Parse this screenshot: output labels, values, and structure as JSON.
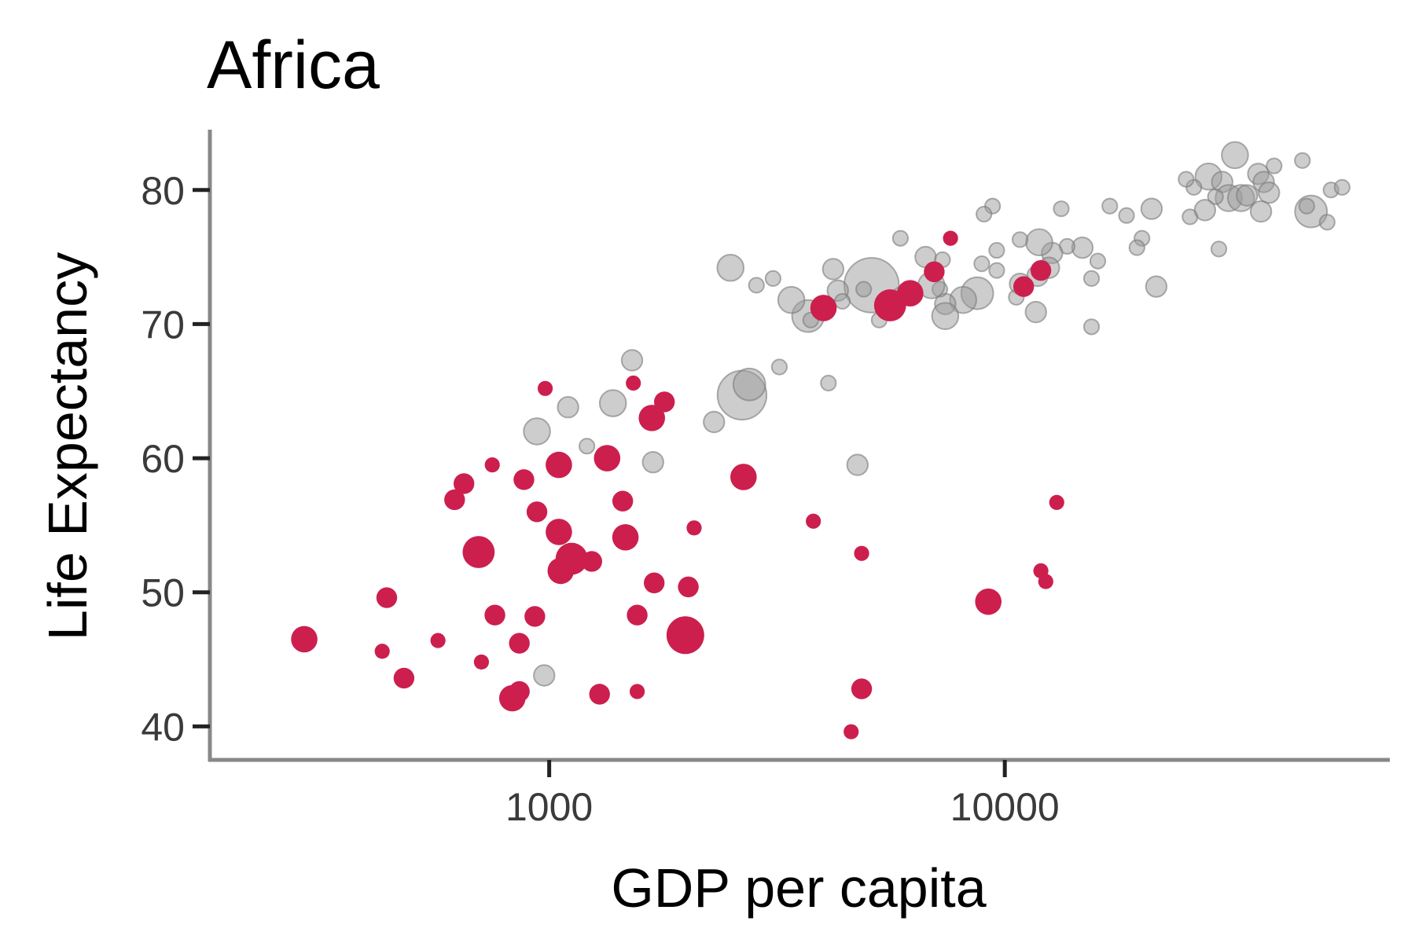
{
  "chart_data": {
    "type": "scatter",
    "title": "Africa",
    "xlabel": "GDP per capita",
    "ylabel": "Life Expectancy",
    "x_scale": "log10",
    "xlim": [
      180,
      70000
    ],
    "ylim": [
      37.5,
      84.5
    ],
    "x_ticks": [
      1000,
      10000
    ],
    "x_tick_labels": [
      "1000",
      "10000"
    ],
    "y_ticks": [
      40,
      50,
      60,
      70,
      80
    ],
    "y_tick_labels": [
      "40",
      "50",
      "60",
      "70",
      "80"
    ],
    "grid": false,
    "legend": "none",
    "colors": {
      "highlight": "#cc1f4e",
      "other": "#9b9b9b"
    },
    "series": [
      {
        "role": "other",
        "points": [
          {
            "x": 32000,
            "y": 82.6,
            "s": 3
          },
          {
            "x": 28000,
            "y": 81.0,
            "s": 3
          },
          {
            "x": 36000,
            "y": 81.2,
            "s": 2
          },
          {
            "x": 39000,
            "y": 81.8,
            "s": 1
          },
          {
            "x": 45000,
            "y": 82.2,
            "s": 1
          },
          {
            "x": 37000,
            "y": 80.6,
            "s": 2
          },
          {
            "x": 30000,
            "y": 80.6,
            "s": 2
          },
          {
            "x": 26000,
            "y": 80.2,
            "s": 1
          },
          {
            "x": 25000,
            "y": 80.8,
            "s": 1
          },
          {
            "x": 31000,
            "y": 79.4,
            "s": 3
          },
          {
            "x": 33000,
            "y": 79.4,
            "s": 3
          },
          {
            "x": 34000,
            "y": 79.6,
            "s": 2
          },
          {
            "x": 29000,
            "y": 79.5,
            "s": 1
          },
          {
            "x": 38000,
            "y": 79.8,
            "s": 2
          },
          {
            "x": 36500,
            "y": 78.4,
            "s": 2
          },
          {
            "x": 52000,
            "y": 80.0,
            "s": 1
          },
          {
            "x": 55000,
            "y": 80.2,
            "s": 1
          },
          {
            "x": 47000,
            "y": 78.4,
            "s": 4
          },
          {
            "x": 46000,
            "y": 78.8,
            "s": 1
          },
          {
            "x": 51000,
            "y": 77.6,
            "s": 1
          },
          {
            "x": 21000,
            "y": 78.6,
            "s": 2
          },
          {
            "x": 25500,
            "y": 78.0,
            "s": 1
          },
          {
            "x": 27500,
            "y": 78.5,
            "s": 2
          },
          {
            "x": 17000,
            "y": 78.8,
            "s": 1
          },
          {
            "x": 18500,
            "y": 78.1,
            "s": 1
          },
          {
            "x": 20000,
            "y": 76.4,
            "s": 1
          },
          {
            "x": 19500,
            "y": 75.7,
            "s": 1
          },
          {
            "x": 29500,
            "y": 75.6,
            "s": 1
          },
          {
            "x": 14800,
            "y": 75.7,
            "s": 2
          },
          {
            "x": 13700,
            "y": 75.8,
            "s": 1
          },
          {
            "x": 12700,
            "y": 75.3,
            "s": 2
          },
          {
            "x": 16000,
            "y": 74.7,
            "s": 1
          },
          {
            "x": 21500,
            "y": 72.8,
            "s": 2
          },
          {
            "x": 15500,
            "y": 73.4,
            "s": 1
          },
          {
            "x": 15500,
            "y": 69.8,
            "s": 1
          },
          {
            "x": 13300,
            "y": 78.6,
            "s": 1
          },
          {
            "x": 11900,
            "y": 76.1,
            "s": 3
          },
          {
            "x": 10800,
            "y": 76.3,
            "s": 1
          },
          {
            "x": 9400,
            "y": 78.8,
            "s": 1
          },
          {
            "x": 9000,
            "y": 78.2,
            "s": 1
          },
          {
            "x": 9600,
            "y": 75.5,
            "s": 1
          },
          {
            "x": 12500,
            "y": 74.2,
            "s": 2
          },
          {
            "x": 11800,
            "y": 73.6,
            "s": 2
          },
          {
            "x": 10800,
            "y": 73.0,
            "s": 2
          },
          {
            "x": 8900,
            "y": 74.5,
            "s": 1
          },
          {
            "x": 9600,
            "y": 74.0,
            "s": 1
          },
          {
            "x": 10600,
            "y": 72.0,
            "s": 1
          },
          {
            "x": 11700,
            "y": 70.9,
            "s": 2
          },
          {
            "x": 8700,
            "y": 72.3,
            "s": 4
          },
          {
            "x": 8100,
            "y": 71.8,
            "s": 3
          },
          {
            "x": 7400,
            "y": 71.5,
            "s": 2
          },
          {
            "x": 7400,
            "y": 70.6,
            "s": 3
          },
          {
            "x": 7200,
            "y": 72.6,
            "s": 1
          },
          {
            "x": 6900,
            "y": 72.9,
            "s": 3
          },
          {
            "x": 6700,
            "y": 75.0,
            "s": 2
          },
          {
            "x": 7300,
            "y": 74.8,
            "s": 1
          },
          {
            "x": 5900,
            "y": 76.4,
            "s": 1
          },
          {
            "x": 5900,
            "y": 72.2,
            "s": 1
          },
          {
            "x": 5100,
            "y": 72.9,
            "s": 8
          },
          {
            "x": 4900,
            "y": 72.6,
            "s": 1
          },
          {
            "x": 5300,
            "y": 70.3,
            "s": 1
          },
          {
            "x": 4300,
            "y": 72.5,
            "s": 2
          },
          {
            "x": 4200,
            "y": 74.1,
            "s": 2
          },
          {
            "x": 4400,
            "y": 71.7,
            "s": 1
          },
          {
            "x": 3700,
            "y": 70.6,
            "s": 4
          },
          {
            "x": 3750,
            "y": 70.3,
            "s": 1
          },
          {
            "x": 3400,
            "y": 71.8,
            "s": 3
          },
          {
            "x": 3100,
            "y": 73.4,
            "s": 1
          },
          {
            "x": 2850,
            "y": 72.9,
            "s": 1
          },
          {
            "x": 2500,
            "y": 74.2,
            "s": 3
          },
          {
            "x": 2650,
            "y": 64.7,
            "s": 7
          },
          {
            "x": 2750,
            "y": 65.5,
            "s": 4
          },
          {
            "x": 3200,
            "y": 66.8,
            "s": 1
          },
          {
            "x": 4100,
            "y": 65.6,
            "s": 1
          },
          {
            "x": 4750,
            "y": 59.5,
            "s": 2
          },
          {
            "x": 2300,
            "y": 62.7,
            "s": 2
          },
          {
            "x": 1380,
            "y": 64.1,
            "s": 3
          },
          {
            "x": 1520,
            "y": 67.3,
            "s": 2
          },
          {
            "x": 1100,
            "y": 63.8,
            "s": 2
          },
          {
            "x": 940,
            "y": 62.0,
            "s": 3
          },
          {
            "x": 1210,
            "y": 60.9,
            "s": 1
          },
          {
            "x": 1690,
            "y": 59.7,
            "s": 2
          },
          {
            "x": 975,
            "y": 43.8,
            "s": 2
          }
        ]
      },
      {
        "role": "highlight",
        "points": [
          {
            "x": 7600,
            "y": 76.4,
            "s": 1
          },
          {
            "x": 7000,
            "y": 73.9,
            "s": 2
          },
          {
            "x": 12000,
            "y": 74.0,
            "s": 2
          },
          {
            "x": 11000,
            "y": 72.8,
            "s": 2
          },
          {
            "x": 6200,
            "y": 72.3,
            "s": 3
          },
          {
            "x": 5600,
            "y": 71.4,
            "s": 4
          },
          {
            "x": 4000,
            "y": 71.2,
            "s": 3
          },
          {
            "x": 1530,
            "y": 65.6,
            "s": 1
          },
          {
            "x": 980,
            "y": 65.2,
            "s": 1
          },
          {
            "x": 1790,
            "y": 64.2,
            "s": 2
          },
          {
            "x": 1680,
            "y": 63.0,
            "s": 3
          },
          {
            "x": 1340,
            "y": 60.0,
            "s": 3
          },
          {
            "x": 750,
            "y": 59.5,
            "s": 1
          },
          {
            "x": 650,
            "y": 58.1,
            "s": 2
          },
          {
            "x": 880,
            "y": 58.4,
            "s": 2
          },
          {
            "x": 1050,
            "y": 59.5,
            "s": 3
          },
          {
            "x": 2670,
            "y": 58.6,
            "s": 3
          },
          {
            "x": 620,
            "y": 56.9,
            "s": 2
          },
          {
            "x": 940,
            "y": 56.0,
            "s": 2
          },
          {
            "x": 1450,
            "y": 56.8,
            "s": 2
          },
          {
            "x": 1050,
            "y": 54.5,
            "s": 3
          },
          {
            "x": 1470,
            "y": 54.1,
            "s": 3
          },
          {
            "x": 2080,
            "y": 54.8,
            "s": 1
          },
          {
            "x": 3800,
            "y": 55.3,
            "s": 1
          },
          {
            "x": 13000,
            "y": 56.7,
            "s": 1
          },
          {
            "x": 700,
            "y": 53.0,
            "s": 4
          },
          {
            "x": 1120,
            "y": 52.5,
            "s": 4
          },
          {
            "x": 1240,
            "y": 52.3,
            "s": 2
          },
          {
            "x": 1060,
            "y": 51.6,
            "s": 3
          },
          {
            "x": 4850,
            "y": 52.9,
            "s": 1
          },
          {
            "x": 12000,
            "y": 51.6,
            "s": 1
          },
          {
            "x": 12300,
            "y": 50.8,
            "s": 1
          },
          {
            "x": 1700,
            "y": 50.7,
            "s": 2
          },
          {
            "x": 2020,
            "y": 50.4,
            "s": 2
          },
          {
            "x": 440,
            "y": 49.6,
            "s": 2
          },
          {
            "x": 9200,
            "y": 49.3,
            "s": 3
          },
          {
            "x": 760,
            "y": 48.3,
            "s": 2
          },
          {
            "x": 930,
            "y": 48.2,
            "s": 2
          },
          {
            "x": 1560,
            "y": 48.3,
            "s": 2
          },
          {
            "x": 290,
            "y": 46.5,
            "s": 3
          },
          {
            "x": 570,
            "y": 46.4,
            "s": 1
          },
          {
            "x": 860,
            "y": 46.2,
            "s": 2
          },
          {
            "x": 1990,
            "y": 46.8,
            "s": 5
          },
          {
            "x": 430,
            "y": 45.6,
            "s": 1
          },
          {
            "x": 710,
            "y": 44.8,
            "s": 1
          },
          {
            "x": 480,
            "y": 43.6,
            "s": 2
          },
          {
            "x": 830,
            "y": 42.1,
            "s": 3
          },
          {
            "x": 860,
            "y": 42.6,
            "s": 2
          },
          {
            "x": 1290,
            "y": 42.4,
            "s": 2
          },
          {
            "x": 1560,
            "y": 42.6,
            "s": 1
          },
          {
            "x": 4850,
            "y": 42.8,
            "s": 2
          },
          {
            "x": 4600,
            "y": 39.6,
            "s": 1
          }
        ]
      }
    ]
  }
}
